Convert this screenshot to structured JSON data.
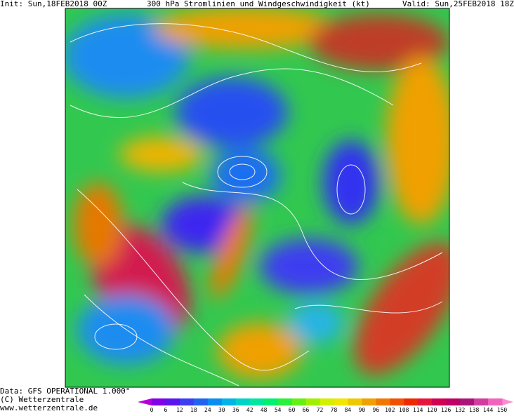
{
  "header": {
    "init": "Init: Sun,18FEB2018 00Z",
    "title": "300 hPa Stromlinien und Windgeschwindigkeit (kt)",
    "valid": "Valid: Sun,25FEB2018 18Z"
  },
  "footer": {
    "data": "Data: GFS OPERATIONAL 1.000°",
    "copyright": "(C) Wetterzentrale",
    "url": "www.wetterzentrale.de"
  },
  "colorbar": {
    "labels": [
      0,
      6,
      12,
      18,
      24,
      30,
      36,
      42,
      48,
      54,
      60,
      66,
      72,
      78,
      84,
      90,
      96,
      102,
      108,
      114,
      120,
      126,
      132,
      138,
      144,
      150
    ],
    "under": "#b400dc",
    "over": "#ff8cd2",
    "colors": [
      "#8200e6",
      "#5a14f0",
      "#3c3cf0",
      "#1e64f0",
      "#0a8cf0",
      "#00b4e6",
      "#00d2c8",
      "#00e6a0",
      "#00f070",
      "#28f03c",
      "#64f014",
      "#a0f000",
      "#d2f000",
      "#f0e600",
      "#f0c800",
      "#f0a000",
      "#f07800",
      "#f05000",
      "#f02800",
      "#e6143c",
      "#d20050",
      "#be0064",
      "#aa1478",
      "#d23ca0",
      "#f064be"
    ]
  }
}
